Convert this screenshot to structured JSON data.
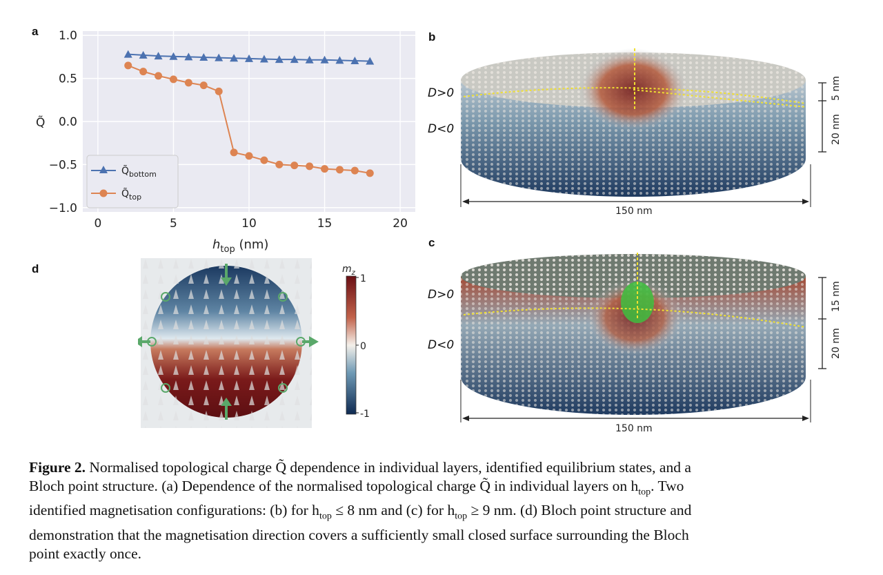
{
  "panels": {
    "a": "a",
    "b": "b",
    "c": "c",
    "d": "d"
  },
  "chart_data": {
    "type": "line",
    "x": [
      2,
      3,
      4,
      5,
      6,
      7,
      8,
      9,
      10,
      11,
      12,
      13,
      14,
      15,
      16,
      17,
      18
    ],
    "xlim": [
      -1,
      21
    ],
    "ylim": [
      -1.05,
      1.05
    ],
    "xticks": [
      "0",
      "5",
      "10",
      "15",
      "20"
    ],
    "xtick_values": [
      0,
      5,
      10,
      15,
      20
    ],
    "yticks": [
      "1.0",
      "0.5",
      "0.0",
      "−0.5",
      "−1.0"
    ],
    "ytick_values": [
      1.0,
      0.5,
      0.0,
      -0.5,
      -1.0
    ],
    "xlabel_main": "h",
    "xlabel_sub": "top",
    "xlabel_unit": " (nm)",
    "ylabel": "Q̃",
    "grid": true,
    "legend_placement": "bottom-left",
    "series": [
      {
        "name": "Q̃",
        "name_sub": "bottom",
        "color": "#4c72b0",
        "marker": "triangle",
        "values": [
          0.78,
          0.77,
          0.76,
          0.755,
          0.75,
          0.745,
          0.74,
          0.735,
          0.73,
          0.725,
          0.72,
          0.72,
          0.715,
          0.715,
          0.71,
          0.705,
          0.7
        ]
      },
      {
        "name": "Q̃",
        "name_sub": "top",
        "color": "#dd8452",
        "marker": "circle",
        "values": [
          0.65,
          0.58,
          0.53,
          0.49,
          0.45,
          0.42,
          0.35,
          -0.36,
          -0.4,
          -0.45,
          -0.5,
          -0.51,
          -0.52,
          -0.55,
          -0.56,
          -0.57,
          -0.6
        ]
      }
    ]
  },
  "panel_b": {
    "d_pos": "D>0",
    "d_neg": "D<0",
    "dim_top": "5 nm",
    "dim_bottom": "20 nm",
    "dim_width": "150 nm"
  },
  "panel_c": {
    "d_pos": "D>0",
    "d_neg": "D<0",
    "dim_top": "15 nm",
    "dim_bottom": "20 nm",
    "dim_width": "150 nm"
  },
  "panel_d": {
    "colorbar_label": "m",
    "colorbar_label_sub": "z",
    "cb_top": "1",
    "cb_mid": "0",
    "cb_bottom": "-1"
  },
  "caption": {
    "fig_label": "Figure 2.",
    "line1": " Normalised topological charge Q̃ dependence in individual layers, identified equilibrium states, and a",
    "line2": "Bloch point structure. (a) Dependence of the normalised topological charge Q̃ in individual layers on h",
    "line2_sub": "top",
    "line2_end": ". Two",
    "line3_a": "identified magnetisation configurations: (b) for h",
    "line3_sub1": "top",
    "line3_b": " ≤ 8 nm and (c) for h",
    "line3_sub2": "top",
    "line3_c": " ≥ 9 nm. (d) Bloch point structure and",
    "line4": "demonstration that the magnetisation direction covers a sufficiently small closed surface surrounding the Bloch",
    "line5": "point exactly once."
  },
  "colors": {
    "plot_bg": "#eaeaf2",
    "blue": "#4c72b0",
    "orange": "#dd8452",
    "red_dark": "#7a1a1a",
    "navy": "#1f3a5f",
    "yellow_line": "#f0e030",
    "green": "#5fb85f"
  }
}
